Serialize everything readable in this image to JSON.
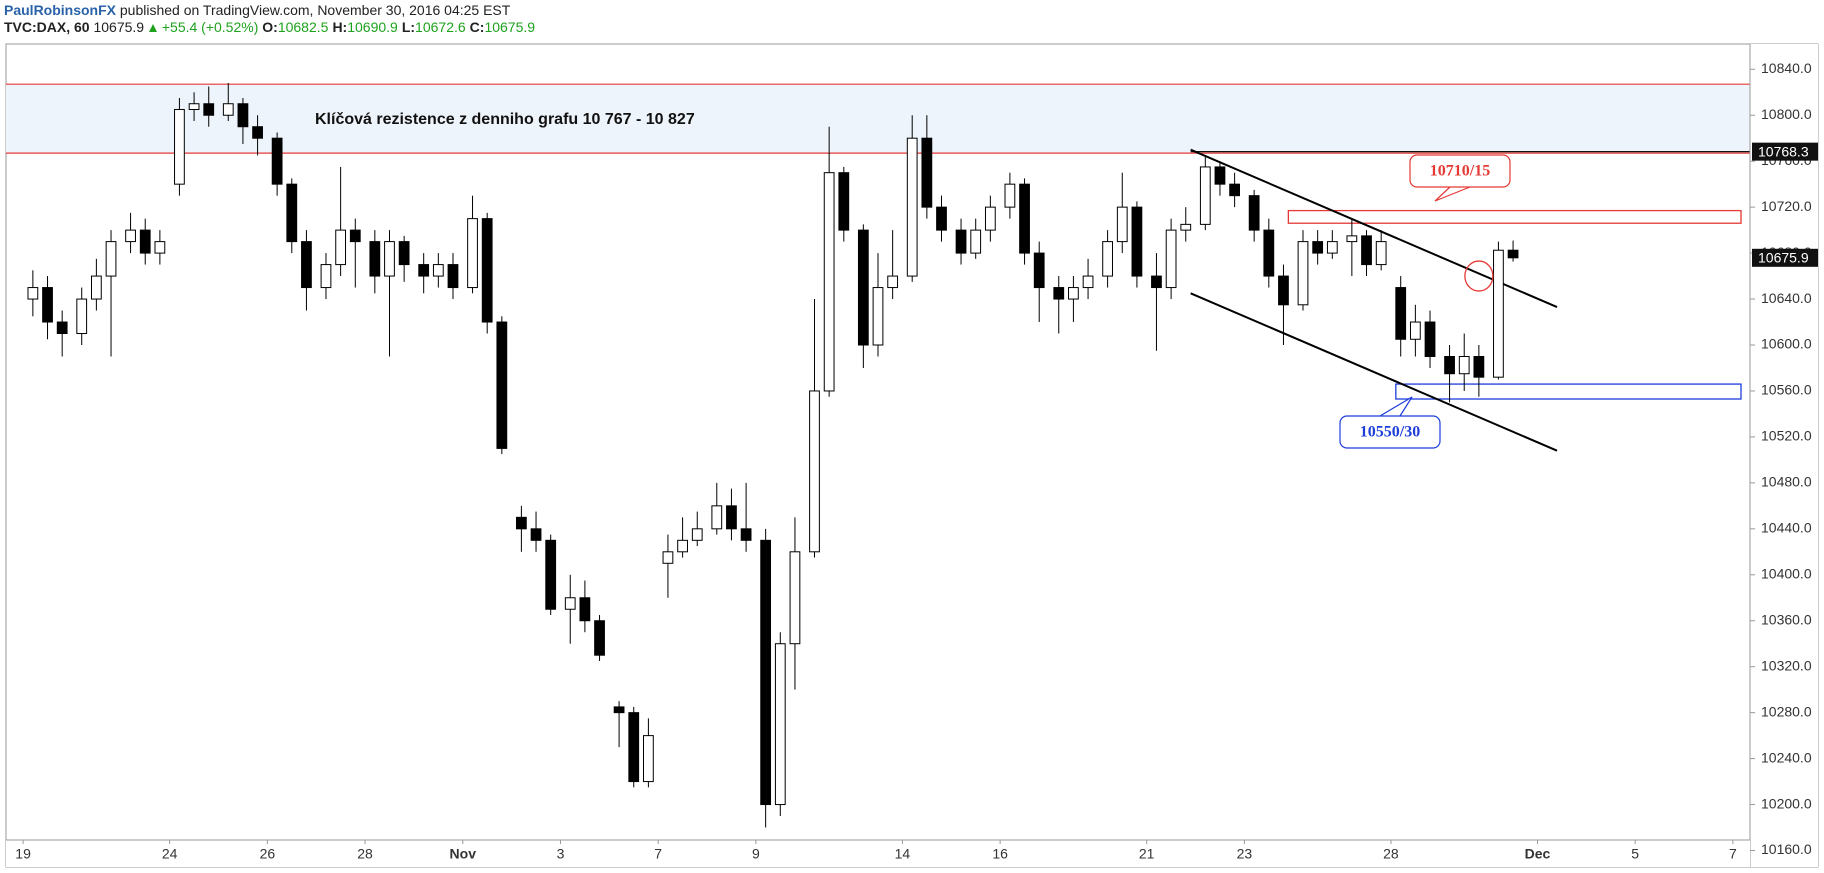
{
  "header": {
    "author": "PaulRobinsonFX",
    "published": "published on TradingView.com, November 30, 2016 04:25 EST",
    "symbol": "TVC:DAX, 60",
    "last": "10675.9",
    "change": "+55.4 (+0.52%)",
    "ohlc": [
      [
        "O:",
        "10682.5"
      ],
      [
        "H:",
        "10690.9"
      ],
      [
        "L:",
        "10672.6"
      ],
      [
        "C:",
        "10675.9"
      ]
    ]
  },
  "chart_data": {
    "type": "candlestick",
    "xlim": [
      -0.35,
      35.35
    ],
    "ylim": [
      10150,
      10862
    ],
    "xticks": [
      {
        "value": 0,
        "label": "19"
      },
      {
        "value": 3,
        "label": "24"
      },
      {
        "value": 5,
        "label": "26"
      },
      {
        "value": 7,
        "label": "28"
      },
      {
        "value": 9,
        "label": "Nov"
      },
      {
        "value": 11,
        "label": "3"
      },
      {
        "value": 13,
        "label": "7"
      },
      {
        "value": 15,
        "label": "9"
      },
      {
        "value": 18,
        "label": "14"
      },
      {
        "value": 20,
        "label": "16"
      },
      {
        "value": 23,
        "label": "21"
      },
      {
        "value": 25,
        "label": "23"
      },
      {
        "value": 28,
        "label": "28"
      },
      {
        "value": 31,
        "label": "Dec"
      },
      {
        "value": 33,
        "label": "5"
      },
      {
        "value": 35,
        "label": "7"
      }
    ],
    "yticks": [
      {
        "value": 10160,
        "label": "10160.0"
      },
      {
        "value": 10200,
        "label": "10200.0"
      },
      {
        "value": 10240,
        "label": "10240.0"
      },
      {
        "value": 10280,
        "label": "10280.0"
      },
      {
        "value": 10320,
        "label": "10320.0"
      },
      {
        "value": 10360,
        "label": "10360.0"
      },
      {
        "value": 10400,
        "label": "10400.0"
      },
      {
        "value": 10440,
        "label": "10440.0"
      },
      {
        "value": 10480,
        "label": "10480.0"
      },
      {
        "value": 10520,
        "label": "10520.0"
      },
      {
        "value": 10560,
        "label": "10560.0"
      },
      {
        "value": 10600,
        "label": "10600.0"
      },
      {
        "value": 10640,
        "label": "10640.0"
      },
      {
        "value": 10680,
        "label": "10680.0"
      },
      {
        "value": 10720,
        "label": "10720.0"
      },
      {
        "value": 10760,
        "label": "10760.0"
      },
      {
        "value": 10800,
        "label": "10800.0"
      },
      {
        "value": 10840,
        "label": "10840.0"
      }
    ],
    "candles": {
      "x": [
        0.2,
        0.5,
        0.8,
        1.2,
        1.5,
        1.8,
        2.2,
        2.5,
        2.8,
        3.2,
        3.5,
        3.8,
        4.2,
        4.5,
        4.8,
        5.2,
        5.5,
        5.8,
        6.2,
        6.5,
        6.8,
        7.2,
        7.5,
        7.8,
        8.2,
        8.5,
        8.8,
        9.2,
        9.5,
        9.8,
        10.2,
        10.5,
        10.8,
        11.2,
        11.5,
        11.8,
        12.2,
        12.5,
        12.8,
        13.2,
        13.5,
        13.8,
        14.2,
        14.5,
        14.8,
        15.2,
        15.5,
        15.8,
        16.2,
        16.5,
        16.8,
        17.2,
        17.5,
        17.8,
        18.2,
        18.5,
        18.8,
        19.2,
        19.5,
        19.8,
        20.2,
        20.5,
        20.8,
        21.2,
        21.5,
        21.8,
        22.2,
        22.5,
        22.8,
        23.2,
        23.5,
        23.8,
        24.2,
        24.5,
        24.8,
        25.2,
        25.5,
        25.8,
        26.2,
        26.5,
        26.8,
        27.2,
        27.5,
        27.8,
        28.2,
        28.5,
        28.8,
        29.2,
        29.5,
        29.8,
        30.2,
        30.5
      ],
      "open": [
        10640,
        10650,
        10620,
        10610,
        10640,
        10660,
        10690,
        10700,
        10680,
        10740,
        10805,
        10810,
        10800,
        10810,
        10790,
        10780,
        10740,
        10690,
        10650,
        10670,
        10700,
        10690,
        10660,
        10690,
        10670,
        10660,
        10670,
        10650,
        10710,
        10620,
        10450,
        10440,
        10430,
        10370,
        10380,
        10360,
        10285,
        10280,
        10220,
        10410,
        10420,
        10430,
        10440,
        10460,
        10440,
        10430,
        10200,
        10340,
        10420,
        10560,
        10750,
        10700,
        10600,
        10650,
        10660,
        10780,
        10720,
        10700,
        10680,
        10700,
        10720,
        10740,
        10680,
        10650,
        10640,
        10650,
        10660,
        10690,
        10720,
        10660,
        10650,
        10700,
        10705,
        10755,
        10740,
        10730,
        10700,
        10660,
        10635,
        10690,
        10680,
        10690,
        10695,
        10670,
        10650,
        10605,
        10620,
        10590,
        10575,
        10590,
        10572,
        10682.5
      ],
      "high": [
        10665,
        10660,
        10630,
        10650,
        10675,
        10700,
        10715,
        10710,
        10700,
        10815,
        10820,
        10825,
        10828,
        10815,
        10800,
        10785,
        10745,
        10700,
        10680,
        10755,
        10710,
        10700,
        10700,
        10695,
        10680,
        10680,
        10680,
        10730,
        10715,
        10625,
        10460,
        10455,
        10435,
        10400,
        10395,
        10365,
        10290,
        10285,
        10275,
        10435,
        10450,
        10455,
        10480,
        10475,
        10480,
        10440,
        10350,
        10450,
        10640,
        10790,
        10755,
        10705,
        10680,
        10700,
        10800,
        10800,
        10730,
        10710,
        10710,
        10730,
        10750,
        10745,
        10690,
        10660,
        10660,
        10675,
        10700,
        10750,
        10725,
        10680,
        10710,
        10720,
        10765,
        10760,
        10750,
        10735,
        10710,
        10670,
        10700,
        10700,
        10700,
        10710,
        10700,
        10700,
        10660,
        10635,
        10630,
        10600,
        10610,
        10600,
        10690,
        10690.9
      ],
      "low": [
        10625,
        10605,
        10590,
        10600,
        10630,
        10590,
        10680,
        10670,
        10670,
        10730,
        10795,
        10790,
        10795,
        10775,
        10765,
        10730,
        10680,
        10630,
        10640,
        10660,
        10650,
        10645,
        10590,
        10655,
        10645,
        10650,
        10640,
        10645,
        10610,
        10505,
        10420,
        10420,
        10365,
        10340,
        10350,
        10325,
        10250,
        10215,
        10215,
        10380,
        10415,
        10425,
        10435,
        10430,
        10420,
        10180,
        10190,
        10300,
        10415,
        10555,
        10690,
        10580,
        10590,
        10640,
        10655,
        10710,
        10690,
        10670,
        10675,
        10690,
        10710,
        10670,
        10620,
        10610,
        10620,
        10640,
        10650,
        10680,
        10650,
        10595,
        10640,
        10690,
        10700,
        10730,
        10720,
        10690,
        10650,
        10600,
        10630,
        10670,
        10675,
        10660,
        10660,
        10665,
        10590,
        10590,
        10580,
        10550,
        10560,
        10555,
        10570,
        10672.6
      ],
      "close": [
        10650,
        10620,
        10610,
        10640,
        10660,
        10690,
        10700,
        10680,
        10690,
        10805,
        10810,
        10800,
        10810,
        10790,
        10780,
        10740,
        10690,
        10650,
        10670,
        10700,
        10690,
        10660,
        10690,
        10670,
        10660,
        10670,
        10650,
        10710,
        10620,
        10510,
        10440,
        10430,
        10370,
        10380,
        10360,
        10330,
        10280,
        10220,
        10260,
        10420,
        10430,
        10440,
        10460,
        10440,
        10430,
        10200,
        10340,
        10420,
        10560,
        10750,
        10700,
        10600,
        10650,
        10660,
        10780,
        10720,
        10700,
        10680,
        10700,
        10720,
        10740,
        10680,
        10650,
        10640,
        10650,
        10660,
        10690,
        10720,
        10660,
        10650,
        10700,
        10705,
        10755,
        10740,
        10730,
        10700,
        10660,
        10635,
        10690,
        10680,
        10690,
        10695,
        10670,
        10690,
        10605,
        10620,
        10590,
        10575,
        10590,
        10572,
        10682.5,
        10675.9
      ]
    },
    "zone": {
      "low": 10767,
      "high": 10827,
      "text": "Klíčová rezistence z denniho grafu 10 767 - 10 827"
    },
    "level_line": {
      "value": 10768.3,
      "x_start": 23.9
    },
    "last_price": 10675.9,
    "channel": [
      {
        "x": [
          23.9,
          31.4
        ],
        "y": [
          10770,
          10633
        ]
      },
      {
        "x": [
          23.9,
          31.4
        ],
        "y": [
          10645,
          10508
        ]
      }
    ],
    "boxes": [
      {
        "x_start": 25.9,
        "low": 10706,
        "high": 10717,
        "color": "#e53935",
        "label": "10710/15"
      },
      {
        "x_start": 28.1,
        "low": 10553,
        "high": 10566,
        "color": "#1e3ddb",
        "label": "10550/30"
      }
    ],
    "circle": {
      "x": 29.8,
      "y": 10660
    }
  }
}
